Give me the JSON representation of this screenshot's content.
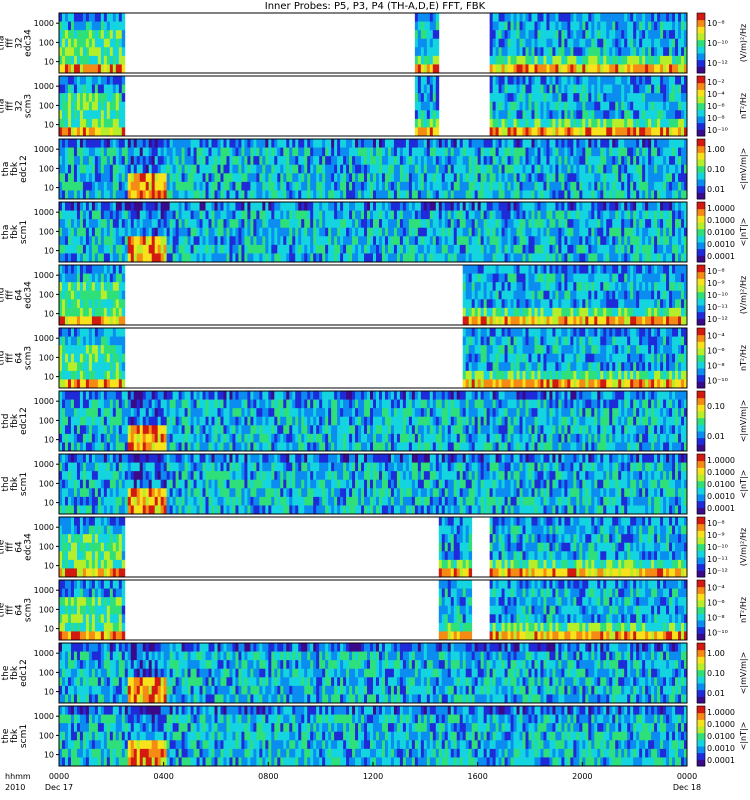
{
  "chart_data": {
    "type": "heatmap",
    "title": "Inner Probes: P5, P3, P4 (TH-A,D,E) FFT, FBK",
    "x_tick_labels": [
      "0000",
      "0400",
      "0800",
      "1200",
      "1600",
      "2000",
      "0000"
    ],
    "x_tick_sub": {
      "start": "Dec 17",
      "end": "Dec 18"
    },
    "x_corner": [
      "hhmm",
      "2010"
    ],
    "colors": {
      "spectrum": [
        "#3a0a8a",
        "#1f2bd8",
        "#0a8cf0",
        "#14d4e0",
        "#2fe07a",
        "#b6ef2a",
        "#f7e21c",
        "#f58a14",
        "#d21a10"
      ],
      "background": "#ffffff"
    },
    "panels": [
      {
        "ylabel": [
          "tha",
          "fff",
          "32",
          "edc34"
        ],
        "yticks": [
          "1000",
          "100",
          "10"
        ],
        "unit": "(V/m)²/Hz",
        "cbticks": [
          "10⁻⁸",
          "10⁻¹⁰",
          "10⁻¹²"
        ],
        "coverage": [
          [
            0,
            0.105
          ],
          [
            0.565,
            0.605
          ],
          [
            0.685,
            1
          ]
        ],
        "kind": "fff"
      },
      {
        "ylabel": [
          "tha",
          "fff",
          "32",
          "scm3"
        ],
        "yticks": [
          "1000",
          "100",
          "10"
        ],
        "unit": "nT²/Hz",
        "cbticks": [
          "10⁻²",
          "10⁻⁴",
          "10⁻⁶",
          "10⁻⁸",
          "10⁻¹⁰"
        ],
        "coverage": [
          [
            0,
            0.105
          ],
          [
            0.565,
            0.605
          ],
          [
            0.685,
            1
          ]
        ],
        "kind": "fff"
      },
      {
        "ylabel": [
          "tha",
          "fbk",
          "edc12"
        ],
        "yticks": [
          "1000",
          "100",
          "10"
        ],
        "unit": "<|mV/m|>",
        "cbticks": [
          "1.00",
          "0.10",
          "0.01"
        ],
        "coverage": [
          [
            0,
            1
          ]
        ],
        "kind": "fbk"
      },
      {
        "ylabel": [
          "tha",
          "fbk",
          "scm1"
        ],
        "yticks": [
          "1000",
          "100",
          "10"
        ],
        "unit": "<|nT|>",
        "cbticks": [
          "1.0000",
          "0.1000",
          "0.0100",
          "0.0010",
          "0.0001"
        ],
        "coverage": [
          [
            0,
            1
          ]
        ],
        "kind": "fbk"
      },
      {
        "ylabel": [
          "thd",
          "fff",
          "64",
          "edc34"
        ],
        "yticks": [
          "1000",
          "100",
          "10"
        ],
        "unit": "(V/m)²/Hz",
        "cbticks": [
          "10⁻⁸",
          "10⁻⁹",
          "10⁻¹⁰",
          "10⁻¹¹",
          "10⁻¹²"
        ],
        "coverage": [
          [
            0,
            0.105
          ],
          [
            0.645,
            1
          ]
        ],
        "kind": "fff"
      },
      {
        "ylabel": [
          "thd",
          "fff",
          "64",
          "scm3"
        ],
        "yticks": [
          "1000",
          "100",
          "10"
        ],
        "unit": "nT²/Hz",
        "cbticks": [
          "10⁻⁴",
          "10⁻⁶",
          "10⁻⁸",
          "10⁻¹⁰"
        ],
        "coverage": [
          [
            0,
            0.105
          ],
          [
            0.645,
            1
          ]
        ],
        "kind": "fff"
      },
      {
        "ylabel": [
          "thd",
          "fbk",
          "edc12"
        ],
        "yticks": [
          "1000",
          "100",
          "10"
        ],
        "unit": "<|mV/m|>",
        "cbticks": [
          "0.10",
          "0.01"
        ],
        "coverage": [
          [
            0,
            1
          ]
        ],
        "kind": "fbk"
      },
      {
        "ylabel": [
          "thd",
          "fbk",
          "scm1"
        ],
        "yticks": [
          "1000",
          "100",
          "10"
        ],
        "unit": "<|nT|>",
        "cbticks": [
          "1.0000",
          "0.1000",
          "0.0100",
          "0.0010",
          "0.0001"
        ],
        "coverage": [
          [
            0,
            1
          ]
        ],
        "kind": "fbk"
      },
      {
        "ylabel": [
          "the",
          "fff",
          "64",
          "edc34"
        ],
        "yticks": [
          "1000",
          "100",
          "10"
        ],
        "unit": "(V/m)²/Hz",
        "cbticks": [
          "10⁻⁸",
          "10⁻⁹",
          "10⁻¹⁰",
          "10⁻¹¹",
          "10⁻¹²"
        ],
        "coverage": [
          [
            0,
            0.105
          ],
          [
            0.605,
            0.655
          ],
          [
            0.685,
            1
          ]
        ],
        "kind": "fff"
      },
      {
        "ylabel": [
          "the",
          "fff",
          "64",
          "scm3"
        ],
        "yticks": [
          "1000",
          "100",
          "10"
        ],
        "unit": "nT²/Hz",
        "cbticks": [
          "10⁻⁴",
          "10⁻⁶",
          "10⁻⁸",
          "10⁻¹⁰"
        ],
        "coverage": [
          [
            0,
            0.105
          ],
          [
            0.605,
            0.655
          ],
          [
            0.685,
            1
          ]
        ],
        "kind": "fff"
      },
      {
        "ylabel": [
          "the",
          "fbk",
          "edc12"
        ],
        "yticks": [
          "1000",
          "100",
          "10"
        ],
        "unit": "<|mV/m|>",
        "cbticks": [
          "1.00",
          "0.10",
          "0.01"
        ],
        "coverage": [
          [
            0,
            1
          ]
        ],
        "kind": "fbk"
      },
      {
        "ylabel": [
          "the",
          "fbk",
          "scm1"
        ],
        "yticks": [
          "1000",
          "100",
          "10"
        ],
        "unit": "<|nT|>",
        "cbticks": [
          "1.0000",
          "0.1000",
          "0.0100",
          "0.0010",
          "0.0001"
        ],
        "coverage": [
          [
            0,
            1
          ]
        ],
        "kind": "fbk"
      }
    ]
  }
}
